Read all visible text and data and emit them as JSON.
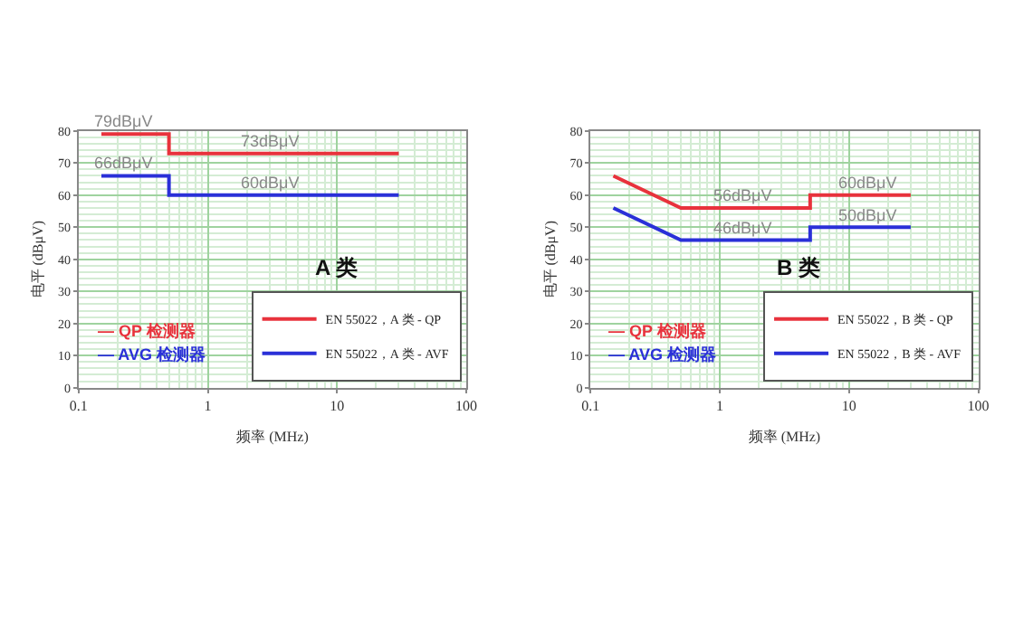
{
  "chart_data": [
    {
      "type": "line",
      "xlabel": "频率 (MHz)",
      "ylabel": "电平 (dBμV)",
      "log": "x",
      "grid": true,
      "legend": "bottom right",
      "xlim": [
        0.1,
        100
      ],
      "xticks": [
        0.1,
        1,
        10,
        100
      ],
      "ylim": [
        0,
        80
      ],
      "yticks": [
        0,
        10,
        20,
        30,
        40,
        50,
        60,
        70,
        80
      ],
      "series": [
        {
          "name": "EN 55022，A 类 - QP",
          "color": "#e8323c",
          "x": [
            0.15,
            0.5,
            0.5,
            30
          ],
          "values": [
            79,
            79,
            73,
            73
          ]
        },
        {
          "name": "EN 55022，A 类 - AVF",
          "color": "#2a30d8",
          "x": [
            0.15,
            0.5,
            0.5,
            30
          ],
          "values": [
            66,
            66,
            60,
            60
          ]
        }
      ],
      "annotations": [
        "A 类",
        "— QP 检测器",
        "— AVG 检测器",
        {
          "text": "79dBμV",
          "x": 0.22,
          "y": 79
        },
        {
          "text": "73dBμV",
          "x": 3,
          "y": 73
        },
        {
          "text": "66dBμV",
          "x": 0.22,
          "y": 66
        },
        {
          "text": "60dBμV",
          "x": 3,
          "y": 60
        }
      ]
    },
    {
      "type": "line",
      "xlabel": "频率 (MHz)",
      "ylabel": "电平 (dBμV)",
      "log": "x",
      "grid": true,
      "legend": "bottom right",
      "xlim": [
        0.1,
        100
      ],
      "xticks": [
        0.1,
        1,
        10,
        100
      ],
      "ylim": [
        0,
        80
      ],
      "yticks": [
        0,
        10,
        20,
        30,
        40,
        50,
        60,
        70,
        80
      ],
      "series": [
        {
          "name": "EN 55022，B 类 - QP",
          "color": "#e8323c",
          "x": [
            0.15,
            0.5,
            5,
            5,
            30
          ],
          "values": [
            66,
            56,
            56,
            60,
            60
          ]
        },
        {
          "name": "EN 55022，B 类 - AVF",
          "color": "#2a30d8",
          "x": [
            0.15,
            0.5,
            5,
            5,
            30
          ],
          "values": [
            56,
            46,
            46,
            50,
            50
          ]
        }
      ],
      "annotations": [
        "B 类",
        "— QP 检测器",
        "— AVG 检测器",
        {
          "text": "56dBμV",
          "x": 1.5,
          "y": 56
        },
        {
          "text": "60dBμV",
          "x": 14,
          "y": 60
        },
        {
          "text": "46dBμV",
          "x": 1.5,
          "y": 46
        },
        {
          "text": "50dBμV",
          "x": 14,
          "y": 50
        }
      ]
    }
  ]
}
